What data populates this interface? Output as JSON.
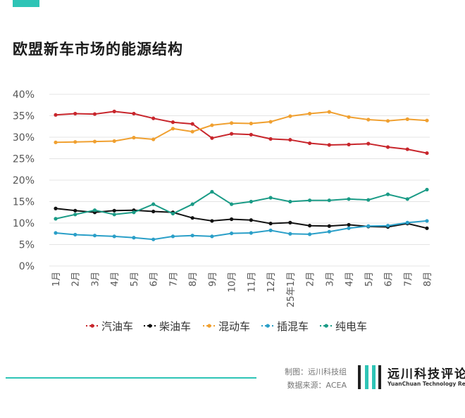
{
  "header": {
    "title": "欧盟新车市场的能源结构"
  },
  "colors": {
    "accent": "#2ec4b6",
    "gasoline": "#c8262c",
    "diesel": "#111111",
    "hybrid": "#f0a030",
    "phev": "#2a9fc8",
    "bev": "#1a9b86",
    "grid": "#e4e4e4"
  },
  "chart_data": {
    "type": "line",
    "title": "欧盟新车市场的能源结构",
    "x": [
      "1月",
      "2月",
      "3月",
      "4月",
      "5月",
      "6月",
      "7月",
      "8月",
      "9月",
      "10月",
      "11月",
      "12月",
      "25年1月",
      "2月",
      "3月",
      "4月",
      "5月",
      "6月",
      "7月",
      "8月"
    ],
    "y_ticks": [
      "40%",
      "35%",
      "30%",
      "25%",
      "20%",
      "15%",
      "10%",
      "5%",
      "0%"
    ],
    "ylim": [
      0,
      40
    ],
    "grid": true,
    "legend_position": "bottom",
    "series": [
      {
        "name": "汽油车",
        "color": "#c8262c",
        "values": [
          35.2,
          35.5,
          35.4,
          36.0,
          35.5,
          34.4,
          33.5,
          33.1,
          29.8,
          30.8,
          30.6,
          29.6,
          29.4,
          28.6,
          28.2,
          28.3,
          28.5,
          27.7,
          27.2,
          26.3
        ]
      },
      {
        "name": "柴油车",
        "color": "#111111",
        "values": [
          13.4,
          12.9,
          12.5,
          12.9,
          13.0,
          12.7,
          12.5,
          11.2,
          10.5,
          10.9,
          10.7,
          9.9,
          10.1,
          9.4,
          9.3,
          9.6,
          9.2,
          9.1,
          9.9,
          8.8
        ]
      },
      {
        "name": "混动车",
        "color": "#f0a030",
        "values": [
          28.8,
          28.9,
          29.0,
          29.1,
          29.9,
          29.5,
          32.0,
          31.3,
          32.8,
          33.3,
          33.2,
          33.6,
          34.9,
          35.5,
          35.9,
          34.7,
          34.1,
          33.8,
          34.2,
          33.9
        ]
      },
      {
        "name": "插混车",
        "color": "#2a9fc8",
        "values": [
          7.7,
          7.3,
          7.1,
          6.9,
          6.6,
          6.2,
          6.9,
          7.1,
          6.9,
          7.6,
          7.7,
          8.3,
          7.5,
          7.4,
          8.0,
          8.8,
          9.3,
          9.4,
          10.1,
          10.5
        ]
      },
      {
        "name": "纯电车",
        "color": "#1a9b86",
        "values": [
          11.0,
          12.0,
          13.0,
          12.0,
          12.5,
          14.4,
          12.2,
          14.4,
          17.3,
          14.4,
          15.0,
          15.9,
          15.0,
          15.3,
          15.3,
          15.6,
          15.4,
          16.7,
          15.6,
          17.8
        ]
      }
    ]
  },
  "footer": {
    "credit_line1": "制图：远川科技组",
    "credit_line2": "数据来源：ACEA",
    "brand_name": "远川科技评论",
    "brand_sub": "YuanChuan Technology Review"
  }
}
